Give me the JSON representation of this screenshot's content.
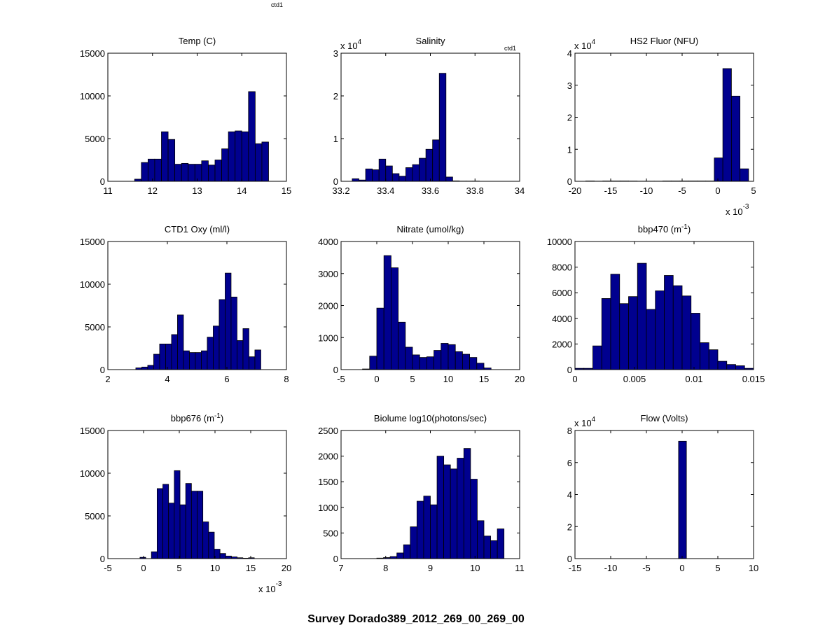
{
  "figure_title": "Survey Dorado389_2012_269_00_269_00",
  "tags": [
    "ctd1",
    "ctd1"
  ],
  "colors": {
    "bar_fill": "#00008f",
    "bar_edge": "#000000",
    "axes": "#000000",
    "background": "#ffffff"
  },
  "chart_data": [
    {
      "type": "bar",
      "title": "Temp (C)",
      "title_sup": "",
      "xlim": [
        11,
        15
      ],
      "ylim": [
        0,
        15000
      ],
      "xticks": [
        11,
        12,
        13,
        14,
        15
      ],
      "xtick_labels": [
        "11",
        "12",
        "13",
        "14",
        "15"
      ],
      "yticks": [
        0,
        5000,
        10000,
        15000
      ],
      "ytick_labels": [
        "0",
        "5000",
        "10000",
        "15000"
      ],
      "x_exponent": "",
      "y_exponent": "",
      "bins": [
        [
          11.45,
          11.6,
          0
        ],
        [
          11.6,
          11.75,
          250
        ],
        [
          11.75,
          11.9,
          2200
        ],
        [
          11.9,
          12.05,
          2600
        ],
        [
          12.05,
          12.2,
          2600
        ],
        [
          12.2,
          12.35,
          5800
        ],
        [
          12.35,
          12.5,
          4900
        ],
        [
          12.5,
          12.65,
          2000
        ],
        [
          12.65,
          12.8,
          2100
        ],
        [
          12.8,
          12.95,
          2000
        ],
        [
          12.95,
          13.1,
          2000
        ],
        [
          13.1,
          13.25,
          2400
        ],
        [
          13.25,
          13.4,
          1900
        ],
        [
          13.4,
          13.55,
          2500
        ],
        [
          13.55,
          13.7,
          3800
        ],
        [
          13.7,
          13.85,
          5800
        ],
        [
          13.85,
          14.0,
          5900
        ],
        [
          14.0,
          14.15,
          5800
        ],
        [
          14.15,
          14.3,
          10500
        ],
        [
          14.3,
          14.45,
          4400
        ],
        [
          14.45,
          14.6,
          4600
        ]
      ]
    },
    {
      "type": "bar",
      "title": "Salinity",
      "title_sup": "",
      "xlim": [
        33.2,
        34
      ],
      "ylim": [
        0,
        30000
      ],
      "xticks": [
        33.2,
        33.4,
        33.6,
        33.8,
        34
      ],
      "xtick_labels": [
        "33.2",
        "33.4",
        "33.6",
        "33.8",
        "34"
      ],
      "yticks": [
        0,
        10000,
        20000,
        30000
      ],
      "ytick_labels": [
        "0",
        "1",
        "2",
        "3"
      ],
      "x_exponent": "",
      "y_exponent": "4",
      "bins": [
        [
          33.22,
          33.25,
          0
        ],
        [
          33.25,
          33.28,
          600
        ],
        [
          33.28,
          33.31,
          300
        ],
        [
          33.31,
          33.34,
          2900
        ],
        [
          33.34,
          33.37,
          2700
        ],
        [
          33.37,
          33.4,
          5200
        ],
        [
          33.4,
          33.43,
          3600
        ],
        [
          33.43,
          33.46,
          1800
        ],
        [
          33.46,
          33.49,
          1200
        ],
        [
          33.49,
          33.52,
          3200
        ],
        [
          33.52,
          33.55,
          3900
        ],
        [
          33.55,
          33.58,
          5400
        ],
        [
          33.58,
          33.61,
          7500
        ],
        [
          33.61,
          33.64,
          9700
        ],
        [
          33.64,
          33.67,
          25300
        ],
        [
          33.67,
          33.7,
          1000
        ],
        [
          33.7,
          33.73,
          100
        ],
        [
          33.73,
          33.76,
          50
        ],
        [
          33.76,
          33.79,
          50
        ],
        [
          33.79,
          33.82,
          50
        ]
      ]
    },
    {
      "type": "bar",
      "title": "HS2 Fluor (NFU)",
      "title_sup": "",
      "xlim": [
        -0.02,
        0.005
      ],
      "ylim": [
        0,
        40000
      ],
      "xticks": [
        -0.02,
        -0.015,
        -0.01,
        -0.005,
        0,
        0.005
      ],
      "xtick_labels": [
        "-20",
        "-15",
        "-10",
        "-5",
        "0",
        "5"
      ],
      "yticks": [
        0,
        10000,
        20000,
        30000,
        40000
      ],
      "ytick_labels": [
        "0",
        "1",
        "2",
        "3",
        "4"
      ],
      "x_exponent": "-3",
      "y_exponent": "4",
      "bins": [
        [
          -0.0185,
          -0.0173,
          100
        ],
        [
          -0.0173,
          -0.0161,
          50
        ],
        [
          -0.0161,
          -0.0149,
          100
        ],
        [
          -0.0149,
          -0.0137,
          100
        ],
        [
          -0.0137,
          -0.0125,
          100
        ],
        [
          -0.0125,
          -0.0113,
          80
        ],
        [
          -0.0113,
          -0.0101,
          50
        ],
        [
          -0.0101,
          -0.0089,
          50
        ],
        [
          -0.0089,
          -0.0077,
          50
        ],
        [
          -0.0077,
          -0.0065,
          100
        ],
        [
          -0.0065,
          -0.0053,
          100
        ],
        [
          -0.0053,
          -0.0041,
          100
        ],
        [
          -0.0041,
          -0.0029,
          100
        ],
        [
          -0.0029,
          -0.0017,
          100
        ],
        [
          -0.0017,
          -0.0005,
          100
        ],
        [
          -0.0005,
          0.0007,
          7300
        ],
        [
          0.0007,
          0.0019,
          35200
        ],
        [
          0.0019,
          0.0031,
          26600
        ],
        [
          0.0031,
          0.0043,
          3900
        ]
      ]
    },
    {
      "type": "bar",
      "title": "CTD1 Oxy (ml/l)",
      "title_sup": "",
      "xlim": [
        2,
        8
      ],
      "ylim": [
        0,
        15000
      ],
      "xticks": [
        2,
        4,
        6,
        8
      ],
      "xtick_labels": [
        "2",
        "4",
        "6",
        "8"
      ],
      "yticks": [
        0,
        5000,
        10000,
        15000
      ],
      "ytick_labels": [
        "0",
        "5000",
        "10000",
        "15000"
      ],
      "x_exponent": "",
      "y_exponent": "",
      "bins": [
        [
          2.94,
          3.14,
          200
        ],
        [
          3.14,
          3.34,
          300
        ],
        [
          3.34,
          3.54,
          500
        ],
        [
          3.54,
          3.74,
          1800
        ],
        [
          3.74,
          3.94,
          3000
        ],
        [
          3.94,
          4.14,
          3000
        ],
        [
          4.14,
          4.34,
          4100
        ],
        [
          4.34,
          4.54,
          6400
        ],
        [
          4.54,
          4.74,
          2200
        ],
        [
          4.74,
          4.94,
          2000
        ],
        [
          4.94,
          5.14,
          2000
        ],
        [
          5.14,
          5.34,
          2200
        ],
        [
          5.34,
          5.54,
          3800
        ],
        [
          5.54,
          5.74,
          5100
        ],
        [
          5.74,
          5.94,
          8200
        ],
        [
          5.94,
          6.14,
          11300
        ],
        [
          6.14,
          6.34,
          8500
        ],
        [
          6.34,
          6.54,
          3400
        ],
        [
          6.54,
          6.74,
          4800
        ],
        [
          6.74,
          6.94,
          1500
        ],
        [
          6.94,
          7.14,
          2300
        ]
      ]
    },
    {
      "type": "bar",
      "title": "Nitrate (umol/kg)",
      "title_sup": "",
      "xlim": [
        -5,
        20
      ],
      "ylim": [
        0,
        4000
      ],
      "xticks": [
        -5,
        0,
        5,
        10,
        15,
        20
      ],
      "xtick_labels": [
        "-5",
        "0",
        "5",
        "10",
        "15",
        "20"
      ],
      "yticks": [
        0,
        1000,
        2000,
        3000,
        4000
      ],
      "ytick_labels": [
        "0",
        "1000",
        "2000",
        "3000",
        "4000"
      ],
      "x_exponent": "",
      "y_exponent": "",
      "bins": [
        [
          -2.0,
          -1.0,
          20
        ],
        [
          -1.0,
          0.0,
          420
        ],
        [
          0.0,
          1.0,
          1920
        ],
        [
          1.0,
          2.0,
          3560
        ],
        [
          2.0,
          3.0,
          3180
        ],
        [
          3.0,
          4.0,
          1480
        ],
        [
          4.0,
          5.0,
          700
        ],
        [
          5.0,
          6.0,
          460
        ],
        [
          6.0,
          7.0,
          380
        ],
        [
          7.0,
          8.0,
          400
        ],
        [
          8.0,
          9.0,
          600
        ],
        [
          9.0,
          10.0,
          820
        ],
        [
          10.0,
          11.0,
          780
        ],
        [
          11.0,
          12.0,
          560
        ],
        [
          12.0,
          13.0,
          480
        ],
        [
          13.0,
          14.0,
          380
        ],
        [
          14.0,
          15.0,
          200
        ],
        [
          15.0,
          16.0,
          50
        ]
      ]
    },
    {
      "type": "bar",
      "title": "bbp470 (m",
      "title_sup": "-1",
      "xlim": [
        0,
        0.015
      ],
      "ylim": [
        0,
        10000
      ],
      "xticks": [
        0,
        0.005,
        0.01,
        0.015
      ],
      "xtick_labels": [
        "0",
        "0.005",
        "0.01",
        "0.015"
      ],
      "yticks": [
        0,
        2000,
        4000,
        6000,
        8000,
        10000
      ],
      "ytick_labels": [
        "0",
        "2000",
        "4000",
        "6000",
        "8000",
        "10000"
      ],
      "x_exponent": "",
      "y_exponent": "",
      "bins": [
        [
          0.0,
          0.00075,
          100
        ],
        [
          0.00075,
          0.0015,
          100
        ],
        [
          0.0015,
          0.00225,
          1850
        ],
        [
          0.00225,
          0.003,
          5550
        ],
        [
          0.003,
          0.00375,
          7450
        ],
        [
          0.00375,
          0.0045,
          5150
        ],
        [
          0.0045,
          0.00525,
          5700
        ],
        [
          0.00525,
          0.006,
          8300
        ],
        [
          0.006,
          0.00675,
          4700
        ],
        [
          0.00675,
          0.0075,
          6150
        ],
        [
          0.0075,
          0.00825,
          7350
        ],
        [
          0.00825,
          0.009,
          6550
        ],
        [
          0.009,
          0.00975,
          5750
        ],
        [
          0.00975,
          0.0105,
          4400
        ],
        [
          0.0105,
          0.01125,
          2100
        ],
        [
          0.01125,
          0.012,
          1550
        ],
        [
          0.012,
          0.01275,
          650
        ],
        [
          0.01275,
          0.0135,
          400
        ],
        [
          0.0135,
          0.01425,
          300
        ],
        [
          0.01425,
          0.015,
          100
        ]
      ]
    },
    {
      "type": "bar",
      "title": "bbp676 (m",
      "title_sup": "-1",
      "xlim": [
        -0.005,
        0.02
      ],
      "ylim": [
        0,
        15000
      ],
      "xticks": [
        -0.005,
        0,
        0.005,
        0.01,
        0.015,
        0.02
      ],
      "xtick_labels": [
        "-5",
        "0",
        "5",
        "10",
        "15",
        "20"
      ],
      "yticks": [
        0,
        5000,
        10000,
        15000
      ],
      "ytick_labels": [
        "0",
        "5000",
        "10000",
        "15000"
      ],
      "x_exponent": "-3",
      "y_exponent": "",
      "bins": [
        [
          -0.0005,
          0.0003,
          150
        ],
        [
          0.0003,
          0.0011,
          0
        ],
        [
          0.0011,
          0.0019,
          800
        ],
        [
          0.0019,
          0.0027,
          8200
        ],
        [
          0.0027,
          0.0035,
          8700
        ],
        [
          0.0035,
          0.0043,
          6500
        ],
        [
          0.0043,
          0.0051,
          10300
        ],
        [
          0.0051,
          0.0059,
          6300
        ],
        [
          0.0059,
          0.0067,
          8800
        ],
        [
          0.0067,
          0.0075,
          7900
        ],
        [
          0.0075,
          0.0083,
          7900
        ],
        [
          0.0083,
          0.0091,
          4300
        ],
        [
          0.0091,
          0.0099,
          3100
        ],
        [
          0.0099,
          0.0107,
          1100
        ],
        [
          0.0107,
          0.0115,
          600
        ],
        [
          0.0115,
          0.0123,
          300
        ],
        [
          0.0123,
          0.0131,
          200
        ],
        [
          0.0131,
          0.0139,
          100
        ],
        [
          0.0139,
          0.0147,
          50
        ],
        [
          0.0147,
          0.0155,
          100
        ]
      ]
    },
    {
      "type": "bar",
      "title": "Biolume log10(photons/sec)",
      "title_sup": "",
      "xlim": [
        7,
        11
      ],
      "ylim": [
        0,
        2500
      ],
      "xticks": [
        7,
        8,
        9,
        10,
        11
      ],
      "xtick_labels": [
        "7",
        "8",
        "9",
        "10",
        "11"
      ],
      "yticks": [
        0,
        500,
        1000,
        1500,
        2000,
        2500
      ],
      "ytick_labels": [
        "0",
        "500",
        "1000",
        "1500",
        "2000",
        "2500"
      ],
      "x_exponent": "",
      "y_exponent": "",
      "bins": [
        [
          7.65,
          7.8,
          2
        ],
        [
          7.8,
          7.95,
          10
        ],
        [
          7.95,
          8.1,
          20
        ],
        [
          8.1,
          8.25,
          40
        ],
        [
          8.25,
          8.4,
          110
        ],
        [
          8.4,
          8.55,
          270
        ],
        [
          8.55,
          8.7,
          620
        ],
        [
          8.7,
          8.85,
          1120
        ],
        [
          8.85,
          9.0,
          1220
        ],
        [
          9.0,
          9.15,
          1050
        ],
        [
          9.15,
          9.3,
          2000
        ],
        [
          9.3,
          9.45,
          1830
        ],
        [
          9.45,
          9.6,
          1750
        ],
        [
          9.6,
          9.75,
          1960
        ],
        [
          9.75,
          9.9,
          2150
        ],
        [
          9.9,
          10.05,
          1550
        ],
        [
          10.05,
          10.2,
          740
        ],
        [
          10.2,
          10.35,
          440
        ],
        [
          10.35,
          10.5,
          350
        ],
        [
          10.5,
          10.65,
          580
        ]
      ]
    },
    {
      "type": "bar",
      "title": "Flow (Volts)",
      "title_sup": "",
      "xlim": [
        -15,
        10
      ],
      "ylim": [
        0,
        80000
      ],
      "xticks": [
        -15,
        -10,
        -5,
        0,
        5,
        10
      ],
      "xtick_labels": [
        "-15",
        "-10",
        "-5",
        "0",
        "5",
        "10"
      ],
      "yticks": [
        0,
        20000,
        40000,
        60000,
        80000
      ],
      "ytick_labels": [
        "0",
        "2",
        "4",
        "6",
        "8"
      ],
      "x_exponent": "",
      "y_exponent": "4",
      "bins": [
        [
          -0.5,
          0.6,
          73300
        ]
      ]
    }
  ]
}
